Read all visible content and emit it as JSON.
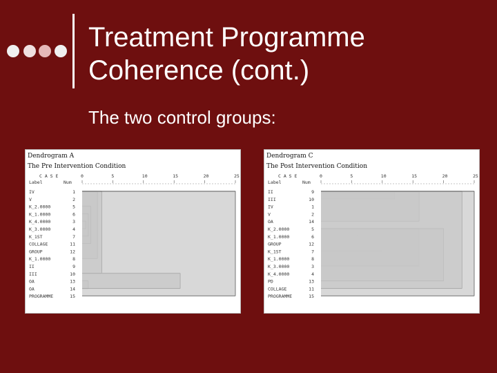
{
  "slide": {
    "title_line1": "Treatment Programme",
    "title_line2": "Coherence (cont.)",
    "subtitle": "The two control groups:"
  },
  "dendrogram_a": {
    "title": "Dendrogram A",
    "subtitle": "The Pre Intervention Condition",
    "case_header": "C A S E",
    "label_header": "Label",
    "num_header": "Num",
    "ticks": [
      "0",
      "5",
      "10",
      "15",
      "20",
      "25"
    ],
    "rows": [
      {
        "label": "IV",
        "num": "1"
      },
      {
        "label": "V",
        "num": "2"
      },
      {
        "label": "K_2.0000",
        "num": "5"
      },
      {
        "label": "K_1.0000",
        "num": "6"
      },
      {
        "label": "K_4.0000",
        "num": "3"
      },
      {
        "label": "K_3.0000",
        "num": "4"
      },
      {
        "label": "K_1ST",
        "num": "7"
      },
      {
        "label": "COLLAGE",
        "num": "11"
      },
      {
        "label": "GROUP",
        "num": "12"
      },
      {
        "label": "K_1.0000",
        "num": "8"
      },
      {
        "label": "II",
        "num": "9"
      },
      {
        "label": "III",
        "num": "10"
      },
      {
        "label": "OA",
        "num": "13"
      },
      {
        "label": "OA",
        "num": "14"
      },
      {
        "label": "PROGRAMME",
        "num": "15"
      }
    ]
  },
  "dendrogram_c": {
    "title": "Dendrogram C",
    "subtitle": "The Post Intervention Condition",
    "case_header": "C A S E",
    "label_header": "Label",
    "num_header": "Num",
    "ticks": [
      "0",
      "5",
      "10",
      "15",
      "20",
      "25"
    ],
    "rows": [
      {
        "label": "II",
        "num": "9"
      },
      {
        "label": "III",
        "num": "10"
      },
      {
        "label": "IV",
        "num": "1"
      },
      {
        "label": "V",
        "num": "2"
      },
      {
        "label": "OA",
        "num": "14"
      },
      {
        "label": "K_2.0000",
        "num": "5"
      },
      {
        "label": "K_1.0000",
        "num": "6"
      },
      {
        "label": "GROUP",
        "num": "12"
      },
      {
        "label": "K_1ST",
        "num": "7"
      },
      {
        "label": "K_1.0000",
        "num": "8"
      },
      {
        "label": "K_3.0000",
        "num": "3"
      },
      {
        "label": "K_4.0000",
        "num": "4"
      },
      {
        "label": "PD",
        "num": "13"
      },
      {
        "label": "COLLAGE",
        "num": "11"
      },
      {
        "label": "PROGRAMME",
        "num": "15"
      }
    ]
  },
  "colors": {
    "background": "#6e0f0f",
    "text": "#ffffff",
    "panel_fill": "#c8c8c8"
  }
}
